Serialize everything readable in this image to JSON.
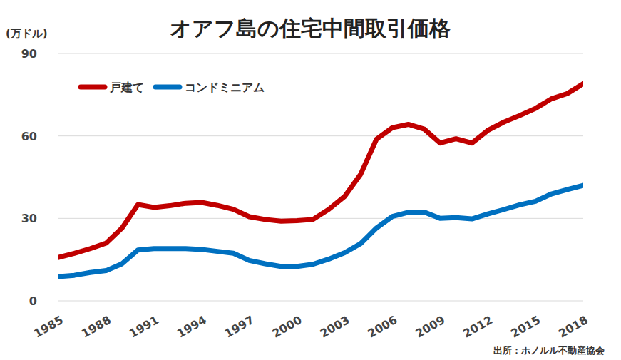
{
  "chart_data": {
    "type": "line",
    "title": "オアフ島の住宅中間取引価格",
    "y_label": "(万ドル)",
    "source": "出所：ホノルル不動産協会",
    "x": [
      1985,
      1986,
      1987,
      1988,
      1989,
      1990,
      1991,
      1992,
      1993,
      1994,
      1995,
      1996,
      1997,
      1998,
      1999,
      2000,
      2001,
      2002,
      2003,
      2004,
      2005,
      2006,
      2007,
      2008,
      2009,
      2010,
      2011,
      2012,
      2013,
      2014,
      2015,
      2016,
      2017,
      2018
    ],
    "series": [
      {
        "name": "戸建て",
        "color": "#c00000",
        "values": [
          15.8,
          17.3,
          19,
          21,
          26.5,
          35,
          34,
          34.6,
          35.5,
          35.8,
          34.7,
          33.3,
          30.6,
          29.6,
          29,
          29.2,
          29.6,
          33.3,
          38,
          46,
          58.8,
          63,
          64.2,
          62.5,
          57.4,
          59,
          57.4,
          62,
          65,
          67.4,
          70,
          73.5,
          75.4,
          79
        ]
      },
      {
        "name": "コンドミニアム",
        "color": "#0070c0",
        "values": [
          8.8,
          9.3,
          10.3,
          11,
          13.5,
          18.5,
          19,
          19,
          19,
          18.7,
          18,
          17.3,
          14.7,
          13.5,
          12.5,
          12.5,
          13.3,
          15.2,
          17.5,
          20.8,
          26.5,
          30.7,
          32.2,
          32.3,
          30,
          30.3,
          29.8,
          31.6,
          33.2,
          34.9,
          36.2,
          38.9,
          40.5,
          42
        ]
      }
    ],
    "xlim": [
      1985,
      2018
    ],
    "xticks": [
      1985,
      1988,
      1991,
      1994,
      1997,
      2000,
      2003,
      2006,
      2009,
      2012,
      2015,
      2018
    ],
    "ylim": [
      0,
      90
    ],
    "yticks": [
      0,
      30,
      60,
      90
    ],
    "grid": true,
    "legend": "top-left"
  }
}
